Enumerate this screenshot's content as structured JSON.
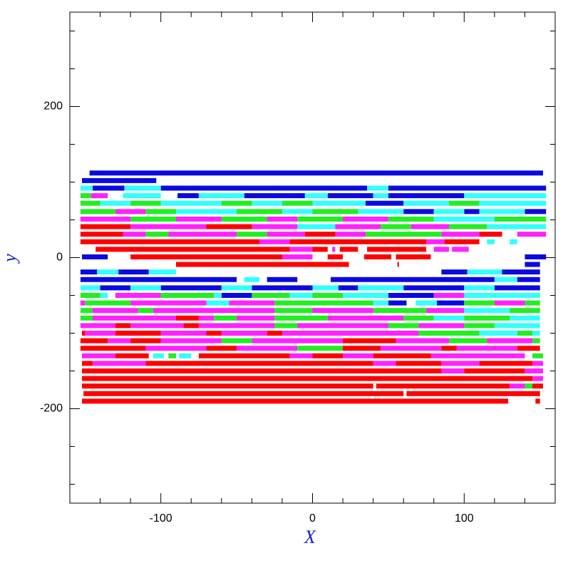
{
  "chart_data": {
    "type": "segments",
    "x_label": "X",
    "y_label": "y",
    "xlim": [
      -160,
      160
    ],
    "ylim": [
      -325,
      325
    ],
    "xticks": [
      -100,
      0,
      100
    ],
    "yticks": [
      -200,
      0,
      200
    ],
    "xticks_minor": [
      -140,
      -120,
      -80,
      -60,
      -40,
      -20,
      20,
      40,
      60,
      80,
      120,
      140
    ],
    "yticks_minor": [
      -300,
      -250,
      -150,
      -100,
      -50,
      50,
      100,
      150,
      250,
      300
    ],
    "series": [
      {
        "color": "#0a0ae0",
        "segments": [
          [
            -147,
            152,
            112
          ],
          [
            -152,
            -103,
            102
          ],
          [
            -145,
            -124,
            92
          ],
          [
            -100,
            36,
            92
          ],
          [
            50,
            154,
            92
          ],
          [
            -89,
            -75,
            82
          ],
          [
            -45,
            -5,
            82
          ],
          [
            10,
            40,
            82
          ],
          [
            50,
            100,
            82
          ],
          [
            35,
            60,
            72
          ],
          [
            60,
            80,
            61
          ],
          [
            100,
            110,
            61
          ],
          [
            140,
            154,
            61
          ],
          [
            -152,
            -135,
            1
          ],
          [
            140,
            154,
            1
          ],
          [
            140,
            150,
            -9
          ],
          [
            -153,
            -142,
            -19
          ],
          [
            -128,
            -108,
            -19
          ],
          [
            85,
            102,
            -19
          ],
          [
            125,
            150,
            -19
          ],
          [
            -153,
            -50,
            -29
          ],
          [
            -30,
            -10,
            -29
          ],
          [
            12,
            120,
            -29
          ],
          [
            135,
            150,
            -29
          ],
          [
            -140,
            -120,
            -40
          ],
          [
            -100,
            -60,
            -40
          ],
          [
            -40,
            0,
            -40
          ],
          [
            17,
            30,
            -40
          ],
          [
            60,
            100,
            -40
          ],
          [
            120,
            150,
            -40
          ],
          [
            -60,
            -40,
            -50
          ],
          [
            50,
            80,
            -50
          ],
          [
            50,
            62,
            -60
          ],
          [
            82,
            100,
            -60
          ]
        ]
      },
      {
        "color": "#33ffff",
        "segments": [
          [
            -153,
            -145,
            92
          ],
          [
            -124,
            -100,
            92
          ],
          [
            36,
            50,
            92
          ],
          [
            -125,
            -100,
            82
          ],
          [
            -75,
            -45,
            82
          ],
          [
            -5,
            10,
            82
          ],
          [
            40,
            50,
            82
          ],
          [
            100,
            154,
            82
          ],
          [
            -140,
            -120,
            72
          ],
          [
            -100,
            -60,
            72
          ],
          [
            -40,
            -20,
            72
          ],
          [
            0,
            35,
            72
          ],
          [
            60,
            90,
            72
          ],
          [
            110,
            154,
            72
          ],
          [
            -90,
            -50,
            61
          ],
          [
            -20,
            0,
            61
          ],
          [
            30,
            60,
            61
          ],
          [
            80,
            100,
            61
          ],
          [
            110,
            140,
            61
          ],
          [
            80,
            120,
            51
          ],
          [
            -10,
            15,
            41
          ],
          [
            115,
            154,
            41
          ],
          [
            115,
            120,
            21
          ],
          [
            130,
            135,
            21
          ],
          [
            -142,
            -128,
            -19
          ],
          [
            -108,
            -90,
            -19
          ],
          [
            102,
            125,
            -19
          ],
          [
            -45,
            -35,
            -29
          ],
          [
            120,
            135,
            -29
          ],
          [
            -153,
            -140,
            -40
          ],
          [
            -120,
            -100,
            -40
          ],
          [
            -60,
            -40,
            -40
          ],
          [
            0,
            17,
            -40
          ],
          [
            30,
            60,
            -40
          ],
          [
            100,
            120,
            -40
          ],
          [
            -140,
            -135,
            -50
          ],
          [
            -65,
            -60,
            -50
          ],
          [
            -15,
            0,
            -50
          ],
          [
            20,
            50,
            -50
          ],
          [
            100,
            150,
            -50
          ],
          [
            -70,
            -55,
            -60
          ],
          [
            40,
            50,
            -60
          ],
          [
            68,
            82,
            -60
          ],
          [
            100,
            130,
            -70
          ],
          [
            80,
            100,
            -80
          ],
          [
            130,
            150,
            -80
          ],
          [
            120,
            150,
            -90
          ],
          [
            110,
            135,
            -100
          ],
          [
            145,
            150,
            -100
          ],
          [
            -105,
            -98,
            -130
          ],
          [
            -88,
            -80,
            -130
          ]
        ]
      },
      {
        "color": "#22ee22",
        "segments": [
          [
            -153,
            -146,
            82
          ],
          [
            -153,
            -140,
            72
          ],
          [
            -120,
            -100,
            72
          ],
          [
            -60,
            -40,
            72
          ],
          [
            -20,
            0,
            72
          ],
          [
            90,
            110,
            72
          ],
          [
            -153,
            -130,
            61
          ],
          [
            -110,
            -90,
            61
          ],
          [
            -50,
            -20,
            61
          ],
          [
            0,
            30,
            61
          ],
          [
            -120,
            -90,
            51
          ],
          [
            -60,
            -30,
            51
          ],
          [
            -10,
            20,
            51
          ],
          [
            50,
            80,
            51
          ],
          [
            120,
            154,
            51
          ],
          [
            45,
            65,
            41
          ],
          [
            90,
            115,
            41
          ],
          [
            -110,
            -95,
            31
          ],
          [
            -50,
            -30,
            31
          ],
          [
            35,
            85,
            31
          ],
          [
            -153,
            -140,
            -50
          ],
          [
            -100,
            -65,
            -50
          ],
          [
            -40,
            -15,
            -50
          ],
          [
            0,
            20,
            -50
          ],
          [
            -150,
            -120,
            -60
          ],
          [
            -25,
            40,
            -60
          ],
          [
            100,
            120,
            -60
          ],
          [
            140,
            150,
            -60
          ],
          [
            -153,
            -145,
            -70
          ],
          [
            -115,
            -105,
            -70
          ],
          [
            -25,
            0,
            -70
          ],
          [
            40,
            75,
            -70
          ],
          [
            130,
            150,
            -70
          ],
          [
            -153,
            -145,
            -80
          ],
          [
            -65,
            -50,
            -80
          ],
          [
            -25,
            10,
            -80
          ],
          [
            60,
            80,
            -80
          ],
          [
            100,
            130,
            -80
          ],
          [
            -25,
            -10,
            -90
          ],
          [
            50,
            70,
            -90
          ],
          [
            100,
            120,
            -90
          ],
          [
            70,
            110,
            -100
          ],
          [
            135,
            145,
            -100
          ],
          [
            -60,
            -40,
            -110
          ],
          [
            90,
            115,
            -110
          ],
          [
            145,
            150,
            -110
          ],
          [
            -10,
            20,
            -120
          ],
          [
            -95,
            -90,
            -130
          ],
          [
            145,
            152,
            -130
          ],
          [
            140,
            145,
            -170
          ]
        ]
      },
      {
        "color": "#ff22ff",
        "segments": [
          [
            -146,
            -135,
            82
          ],
          [
            -130,
            -110,
            61
          ],
          [
            -153,
            -120,
            51
          ],
          [
            -90,
            -60,
            51
          ],
          [
            -30,
            -10,
            51
          ],
          [
            20,
            50,
            51
          ],
          [
            -120,
            -70,
            41
          ],
          [
            -40,
            -10,
            41
          ],
          [
            15,
            45,
            41
          ],
          [
            65,
            90,
            41
          ],
          [
            -125,
            -110,
            31
          ],
          [
            -95,
            -50,
            31
          ],
          [
            -30,
            -5,
            31
          ],
          [
            15,
            35,
            31
          ],
          [
            85,
            110,
            31
          ],
          [
            135,
            154,
            31
          ],
          [
            -35,
            -15,
            21
          ],
          [
            75,
            87,
            21
          ],
          [
            -15,
            0,
            11
          ],
          [
            13,
            15,
            11
          ],
          [
            80,
            90,
            11
          ],
          [
            92,
            103,
            11
          ],
          [
            -20,
            0,
            1
          ],
          [
            -130,
            -100,
            -50
          ],
          [
            80,
            100,
            -50
          ],
          [
            -153,
            -150,
            -60
          ],
          [
            -120,
            -70,
            -60
          ],
          [
            -55,
            -25,
            -60
          ],
          [
            120,
            140,
            -60
          ],
          [
            -145,
            -115,
            -70
          ],
          [
            -105,
            -25,
            -70
          ],
          [
            0,
            40,
            -70
          ],
          [
            75,
            100,
            -70
          ],
          [
            -145,
            -90,
            -80
          ],
          [
            -75,
            -65,
            -80
          ],
          [
            -50,
            -25,
            -80
          ],
          [
            10,
            60,
            -80
          ],
          [
            -153,
            -130,
            -90
          ],
          [
            -120,
            -85,
            -90
          ],
          [
            -75,
            -25,
            -90
          ],
          [
            -10,
            50,
            -90
          ],
          [
            70,
            100,
            -90
          ],
          [
            -150,
            -130,
            -100
          ],
          [
            -100,
            -70,
            -100
          ],
          [
            -60,
            -30,
            -100
          ],
          [
            -20,
            70,
            -100
          ],
          [
            -135,
            -120,
            -110
          ],
          [
            -100,
            -60,
            -110
          ],
          [
            -40,
            20,
            -110
          ],
          [
            55,
            90,
            -110
          ],
          [
            115,
            145,
            -110
          ],
          [
            -110,
            -70,
            -120
          ],
          [
            -50,
            -10,
            -120
          ],
          [
            45,
            85,
            -120
          ],
          [
            95,
            135,
            -120
          ],
          [
            -152,
            -130,
            -130
          ],
          [
            -15,
            0,
            -130
          ],
          [
            20,
            40,
            -130
          ],
          [
            78,
            140,
            -130
          ],
          [
            -145,
            -110,
            -140
          ],
          [
            40,
            55,
            -140
          ],
          [
            85,
            110,
            -140
          ],
          [
            145,
            152,
            -140
          ],
          [
            85,
            100,
            -150
          ],
          [
            140,
            152,
            -150
          ],
          [
            145,
            152,
            -160
          ],
          [
            130,
            140,
            -170
          ]
        ]
      },
      {
        "color": "#ff0000",
        "segments": [
          [
            -153,
            -120,
            41
          ],
          [
            -70,
            -40,
            41
          ],
          [
            -153,
            -125,
            31
          ],
          [
            -5,
            15,
            31
          ],
          [
            110,
            125,
            31
          ],
          [
            -153,
            -35,
            21
          ],
          [
            -15,
            75,
            21
          ],
          [
            87,
            110,
            21
          ],
          [
            -143,
            -15,
            11
          ],
          [
            0,
            10,
            11
          ],
          [
            18,
            30,
            11
          ],
          [
            36,
            75,
            11
          ],
          [
            -120,
            -20,
            1
          ],
          [
            10,
            20,
            1
          ],
          [
            34,
            52,
            1
          ],
          [
            55,
            78,
            1
          ],
          [
            -90,
            24,
            -9
          ],
          [
            56,
            57,
            -9
          ],
          [
            -90,
            -75,
            -80
          ],
          [
            -130,
            -120,
            -90
          ],
          [
            -85,
            -75,
            -90
          ],
          [
            -152,
            -150,
            -100
          ],
          [
            -130,
            -100,
            -100
          ],
          [
            -70,
            -60,
            -100
          ],
          [
            -30,
            -20,
            -100
          ],
          [
            -153,
            -135,
            -110
          ],
          [
            -120,
            -100,
            -110
          ],
          [
            20,
            55,
            -110
          ],
          [
            -153,
            -110,
            -120
          ],
          [
            -70,
            -50,
            -120
          ],
          [
            20,
            45,
            -120
          ],
          [
            85,
            95,
            -120
          ],
          [
            135,
            150,
            -120
          ],
          [
            -130,
            -108,
            -130
          ],
          [
            -75,
            -15,
            -130
          ],
          [
            0,
            20,
            -130
          ],
          [
            40,
            78,
            -130
          ],
          [
            -152,
            -145,
            -140
          ],
          [
            -110,
            40,
            -140
          ],
          [
            55,
            85,
            -140
          ],
          [
            110,
            145,
            -140
          ],
          [
            -152,
            85,
            -150
          ],
          [
            100,
            140,
            -150
          ],
          [
            -152,
            145,
            -160
          ],
          [
            -152,
            40,
            -170
          ],
          [
            42,
            130,
            -170
          ],
          [
            145,
            152,
            -170
          ],
          [
            -151,
            60,
            -180
          ],
          [
            62,
            150,
            -180
          ],
          [
            -152,
            129,
            -190
          ],
          [
            147,
            150,
            -190
          ]
        ]
      }
    ]
  }
}
